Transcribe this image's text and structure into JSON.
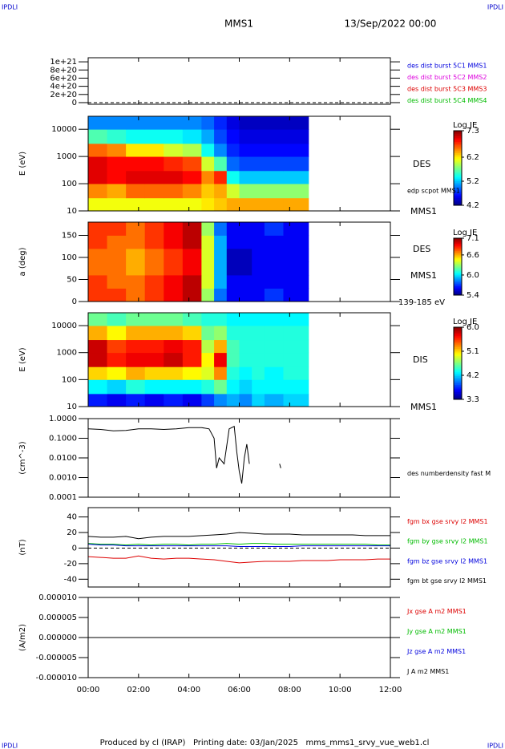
{
  "header": {
    "logo_left": "IPDLI",
    "logo_right": "IPDLI",
    "title": "MMS1",
    "date": "13/Sep/2022 00:00"
  },
  "footer": {
    "text": "Produced by cl (IRAP)   Printing date: 03/Jan/2025   mms_mms1_srvy_vue_web1.cl",
    "logo_left": "IPDLI",
    "logo_right": "IPDLI"
  },
  "chart_data": [
    {
      "type": "line",
      "ylim": [
        -4e+19,
        1.1e+21
      ],
      "yticks": [
        {
          "value": 1e+21,
          "label": "1e+21"
        },
        {
          "value": 8e+20,
          "label": "8e+20"
        },
        {
          "value": 6e+20,
          "label": "6e+20"
        },
        {
          "value": 4e+20,
          "label": "4e+20"
        },
        {
          "value": 2e+20,
          "label": "2e+20"
        },
        0
      ],
      "hline": 0,
      "series": [
        {
          "name": "des dist burst 5C1 MMS1",
          "color": "#0000dd"
        },
        {
          "name": "des dist burst 5C2 MMS2",
          "color": "#dd00dd"
        },
        {
          "name": "des dist burst 5C3 MMS3",
          "color": "#dd0000"
        },
        {
          "name": "des dist burst 5C4 MMS4",
          "color": "#00bb00"
        }
      ]
    },
    {
      "type": "heatmap",
      "ylabel": "E (eV)",
      "ylog": true,
      "ylim": [
        10,
        30000
      ],
      "yticks": [
        10000,
        1000,
        100,
        10
      ],
      "x": [
        0,
        0.75,
        1.5,
        2.25,
        3,
        3.75,
        4.5,
        5.0,
        5.5,
        6.0,
        6.5,
        7.0,
        7.75,
        8.75
      ],
      "y": [
        10,
        30,
        100,
        300,
        1000,
        3000,
        10000,
        30000
      ],
      "z": [
        [
          6.1,
          6.1,
          6.1,
          6.1,
          6.1,
          6.1,
          6.2,
          6.3,
          6.4,
          6.4,
          6.4,
          6.4,
          6.4
        ],
        [
          6.5,
          6.4,
          6.6,
          6.6,
          6.6,
          6.5,
          6.3,
          6.4,
          6.0,
          5.8,
          5.8,
          5.8,
          5.8
        ],
        [
          7.0,
          6.9,
          7.0,
          7.0,
          7.0,
          6.9,
          6.5,
          6.8,
          5.4,
          5.2,
          5.2,
          5.2,
          5.2
        ],
        [
          7.0,
          6.9,
          6.9,
          6.9,
          6.8,
          6.7,
          6.0,
          5.6,
          4.9,
          4.8,
          4.8,
          4.8,
          4.8
        ],
        [
          6.6,
          6.5,
          6.2,
          6.2,
          6.0,
          5.9,
          5.4,
          5.0,
          4.7,
          4.6,
          4.6,
          4.6,
          4.6
        ],
        [
          5.6,
          5.5,
          5.4,
          5.4,
          5.4,
          5.3,
          5.1,
          4.8,
          4.6,
          4.5,
          4.5,
          4.5,
          4.5
        ],
        [
          5.0,
          5.0,
          5.0,
          5.0,
          5.0,
          5.0,
          4.9,
          4.7,
          4.5,
          4.4,
          4.4,
          4.4,
          4.4
        ]
      ],
      "colorbar": {
        "label": "Log JE",
        "lim": [
          4.2,
          7.3
        ],
        "ticks": [
          7.3,
          6.2,
          5.2,
          4.2
        ]
      },
      "annotations": [
        "DES",
        "edp scpot MMS1",
        "MMS1"
      ]
    },
    {
      "type": "heatmap",
      "ylabel": "a (deg)",
      "ylim": [
        0,
        180
      ],
      "yticks": [
        150,
        100,
        50,
        0
      ],
      "x": [
        0,
        0.75,
        1.5,
        2.25,
        3,
        3.75,
        4.5,
        5.0,
        5.5,
        6.0,
        6.5,
        7.0,
        7.75,
        8.75
      ],
      "y": [
        0,
        30,
        60,
        90,
        120,
        150,
        180
      ],
      "z": [
        [
          6.8,
          6.8,
          6.7,
          6.8,
          6.9,
          7.0,
          6.3,
          5.8,
          5.6,
          5.6,
          5.6,
          5.7,
          5.6
        ],
        [
          6.8,
          6.7,
          6.7,
          6.8,
          6.9,
          7.0,
          6.4,
          5.9,
          5.6,
          5.6,
          5.6,
          5.6,
          5.6
        ],
        [
          6.7,
          6.7,
          6.6,
          6.7,
          6.8,
          6.9,
          6.4,
          5.9,
          5.5,
          5.5,
          5.6,
          5.6,
          5.6
        ],
        [
          6.7,
          6.7,
          6.6,
          6.7,
          6.8,
          6.9,
          6.4,
          5.9,
          5.5,
          5.5,
          5.6,
          5.6,
          5.6
        ],
        [
          6.8,
          6.7,
          6.7,
          6.8,
          6.9,
          7.0,
          6.4,
          5.9,
          5.6,
          5.6,
          5.6,
          5.6,
          5.6
        ],
        [
          6.8,
          6.8,
          6.7,
          6.8,
          6.9,
          7.0,
          6.3,
          5.8,
          5.6,
          5.6,
          5.6,
          5.7,
          5.6
        ]
      ],
      "colorbar": {
        "label": "Log JE",
        "lim": [
          5.4,
          7.1
        ],
        "ticks": [
          7.1,
          6.6,
          {
            "value": 6,
            "label": "6.0"
          },
          5.4
        ]
      },
      "annotations": [
        "DES",
        "MMS1",
        "139-185 eV"
      ]
    },
    {
      "type": "heatmap",
      "ylabel": "E (eV)",
      "ylog": true,
      "ylim": [
        10,
        30000
      ],
      "yticks": [
        10000,
        1000,
        100,
        10
      ],
      "x": [
        0,
        0.75,
        1.5,
        2.25,
        3,
        3.75,
        4.5,
        5.0,
        5.5,
        6.0,
        6.5,
        7.0,
        7.75,
        8.75
      ],
      "y": [
        10,
        30,
        100,
        300,
        1000,
        3000,
        10000,
        30000
      ],
      "z": [
        [
          3.7,
          3.6,
          3.7,
          3.6,
          3.7,
          3.6,
          3.8,
          4.0,
          4.1,
          4.0,
          4.2,
          4.1,
          4.2
        ],
        [
          4.3,
          4.2,
          4.4,
          4.3,
          4.3,
          4.3,
          4.4,
          4.6,
          4.3,
          4.2,
          4.3,
          4.3,
          4.3
        ],
        [
          5.1,
          5.0,
          5.2,
          5.1,
          5.1,
          5.0,
          4.9,
          5.3,
          4.4,
          4.3,
          4.4,
          4.3,
          4.4
        ],
        [
          5.8,
          5.6,
          5.7,
          5.7,
          5.8,
          5.6,
          5.0,
          5.7,
          4.5,
          4.4,
          4.4,
          4.4,
          4.4
        ],
        [
          5.8,
          5.5,
          5.6,
          5.6,
          5.7,
          5.6,
          4.8,
          5.2,
          4.5,
          4.4,
          4.4,
          4.4,
          4.4
        ],
        [
          5.2,
          5.0,
          5.2,
          5.2,
          5.2,
          5.1,
          4.6,
          4.7,
          4.4,
          4.4,
          4.4,
          4.4,
          4.4
        ],
        [
          4.6,
          4.5,
          4.6,
          4.6,
          4.6,
          4.5,
          4.4,
          4.4,
          4.3,
          4.3,
          4.3,
          4.3,
          4.3
        ]
      ],
      "colorbar": {
        "label": "Log JE",
        "lim": [
          3.3,
          6.0
        ],
        "ticks": [
          {
            "value": 6,
            "label": "6.0"
          },
          5.1,
          4.2,
          3.3
        ]
      },
      "annotations": [
        "DIS",
        "MMS1"
      ]
    },
    {
      "type": "line",
      "ylabel": "(cm^-3)",
      "ylog": true,
      "ylim": [
        0.0001,
        1
      ],
      "yticks": [
        {
          "value": 1,
          "label": "1.0000"
        },
        {
          "value": 0.1,
          "label": "0.1000"
        },
        {
          "value": 0.01,
          "label": "0.0100"
        },
        {
          "value": 0.001,
          "label": "0.0010"
        },
        {
          "value": 0.0001,
          "label": "0.0001"
        }
      ],
      "x": [
        0,
        0.5,
        1,
        1.5,
        2,
        2.5,
        3,
        3.5,
        4,
        4.5,
        4.8,
        5.0,
        5.1,
        5.2,
        5.4,
        5.6,
        5.8,
        5.9,
        6.0,
        6.1,
        6.2,
        6.3,
        6.4,
        7.0,
        7.6,
        7.65
      ],
      "series": [
        {
          "name": "des numberdensity fast M",
          "color": "#000000",
          "values": [
            0.3,
            0.28,
            0.24,
            0.25,
            0.3,
            0.3,
            0.28,
            0.3,
            0.35,
            0.35,
            0.3,
            0.1,
            0.003,
            0.01,
            0.005,
            0.3,
            0.4,
            0.02,
            0.002,
            0.0005,
            0.01,
            0.05,
            0.005,
            null,
            0.005,
            0.003
          ]
        }
      ]
    },
    {
      "type": "line",
      "ylabel": "(nT)",
      "ylim": [
        -50,
        52
      ],
      "yticks": [
        40,
        20,
        0,
        -20,
        -40
      ],
      "hline": 0,
      "x": [
        0,
        0.5,
        1,
        1.5,
        2,
        2.5,
        3,
        3.5,
        4,
        4.5,
        5,
        5.5,
        6,
        6.5,
        7,
        7.5,
        8,
        8.5,
        9,
        9.5,
        10,
        10.5,
        11,
        11.5,
        12
      ],
      "series": [
        {
          "name": "fgm bx gse srvy l2 MMS1",
          "color": "#dd0000",
          "values": [
            -11,
            -12,
            -13,
            -13,
            -10,
            -13,
            -14,
            -13,
            -13,
            -14,
            -15,
            -17,
            -19,
            -18,
            -17,
            -17,
            -17,
            -16,
            -16,
            -16,
            -15,
            -15,
            -15,
            -14,
            -14
          ]
        },
        {
          "name": "fgm by gse srvy l2 MMS1",
          "color": "#00bb00",
          "values": [
            6,
            5,
            5,
            4,
            5,
            4,
            5,
            5,
            4,
            5,
            5,
            6,
            5,
            6,
            6,
            5,
            5,
            5,
            5,
            5,
            5,
            5,
            5,
            4,
            4
          ]
        },
        {
          "name": "fgm bz gse srvy l2 MMS1",
          "color": "#0000dd",
          "values": [
            5,
            4,
            4,
            3,
            3,
            3,
            3,
            3,
            3,
            3,
            3,
            3,
            2,
            2,
            2,
            2,
            2,
            3,
            3,
            3,
            3,
            3,
            3,
            3,
            3
          ]
        },
        {
          "name": "fgm bt gse srvy l2 MMS1",
          "color": "#000000",
          "values": [
            15,
            14,
            14,
            15,
            12,
            14,
            15,
            15,
            15,
            16,
            17,
            18,
            20,
            19,
            18,
            18,
            18,
            17,
            17,
            17,
            17,
            17,
            16,
            16,
            16
          ]
        }
      ]
    },
    {
      "type": "line",
      "ylabel": "(A/m2)",
      "ylim": [
        -1e-05,
        1e-05
      ],
      "yticks": [
        {
          "value": 1e-05,
          "label": "0.000010"
        },
        {
          "value": 5e-06,
          "label": "0.000005"
        },
        {
          "value": 0,
          "label": "0.000000"
        },
        {
          "value": -5e-06,
          "label": "-0.000005"
        },
        {
          "value": -1e-05,
          "label": "-0.000010"
        }
      ],
      "x": [
        0,
        12
      ],
      "series": [
        {
          "name": "Jx gse A m2 MMS1",
          "color": "#dd0000",
          "values": [
            0,
            0
          ]
        },
        {
          "name": "Jy gse A m2 MMS1",
          "color": "#00bb00",
          "values": [
            0,
            0
          ]
        },
        {
          "name": "Jz gse A m2 MMS1",
          "color": "#0000dd",
          "values": [
            0,
            0
          ]
        },
        {
          "name": "J A m2 MMS1",
          "color": "#000000",
          "values": [
            0,
            0
          ]
        }
      ],
      "xlim": [
        0,
        12
      ],
      "xticks": [
        {
          "value": 0,
          "label": "00:00"
        },
        {
          "value": 2,
          "label": "02:00"
        },
        {
          "value": 4,
          "label": "04:00"
        },
        {
          "value": 6,
          "label": "06:00"
        },
        {
          "value": 8,
          "label": "08:00"
        },
        {
          "value": 10,
          "label": "10:00"
        },
        {
          "value": 12,
          "label": "12:00"
        }
      ]
    }
  ]
}
